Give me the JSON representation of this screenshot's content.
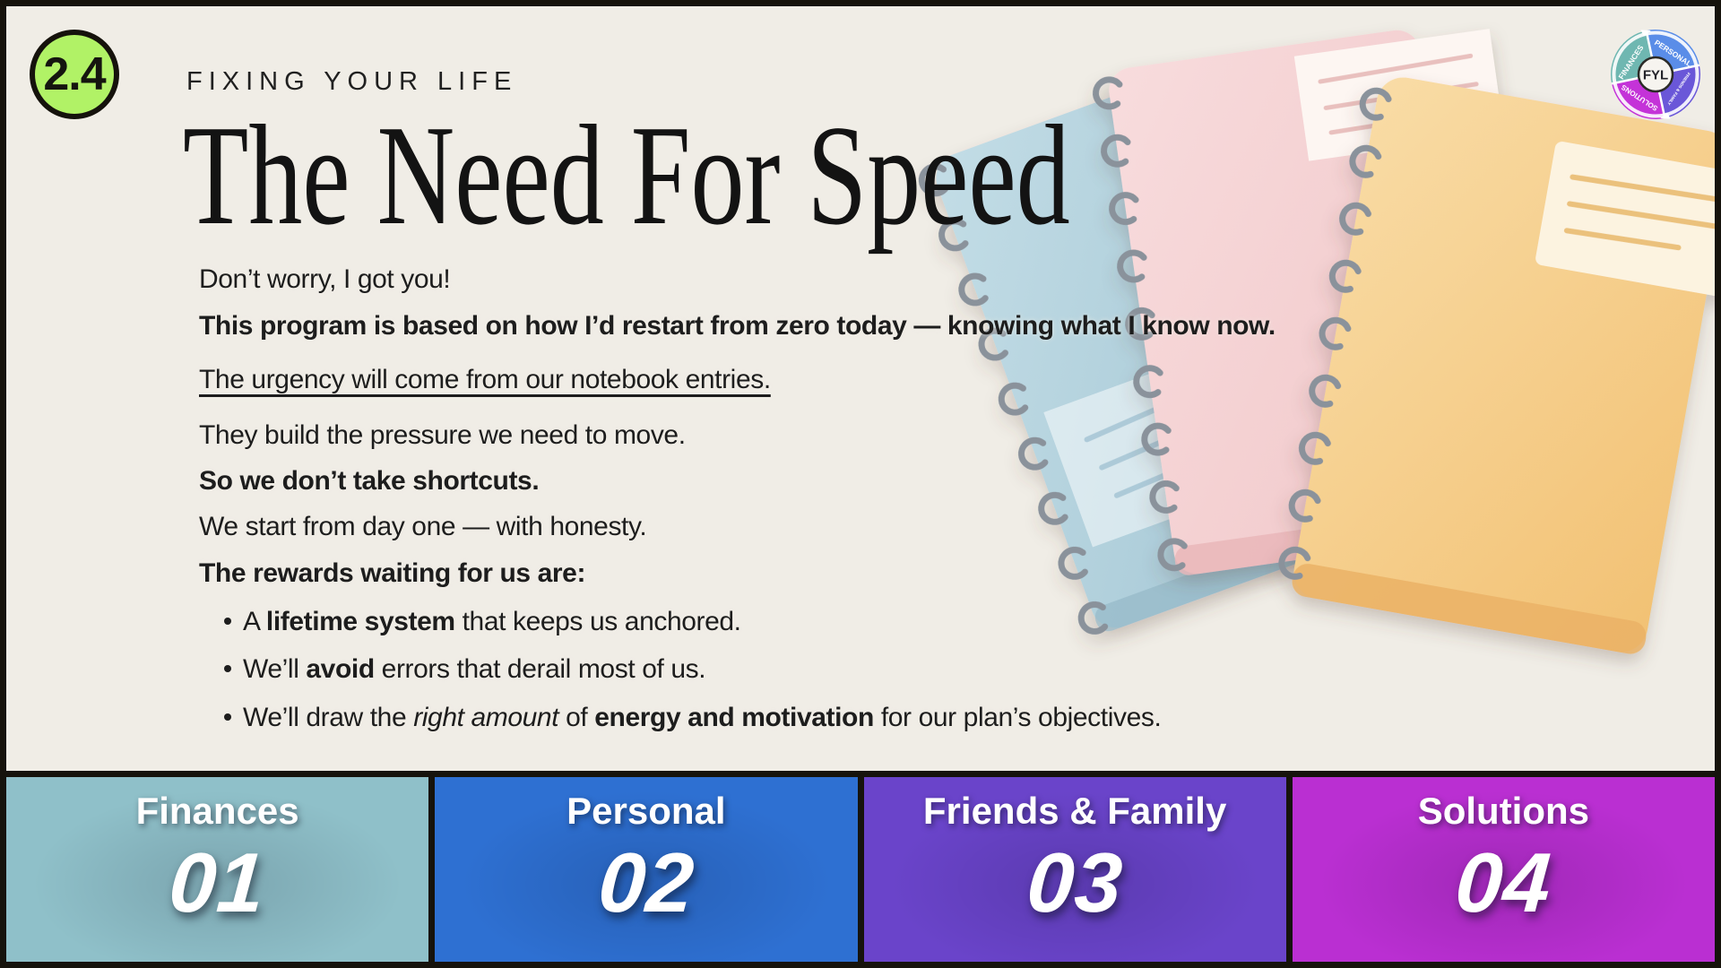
{
  "page": {
    "background": "#f0ede6",
    "border_color": "#16130c"
  },
  "header": {
    "lesson_badge": "2.4",
    "badge_color": "#b1f266",
    "eyebrow": "FIXING YOUR LIFE",
    "title": "The Need For Speed"
  },
  "body": {
    "lines": [
      {
        "segments": [
          {
            "t": "Don’t worry, I got you!"
          }
        ]
      },
      {
        "segments": [
          {
            "t": "This program is based on how I’d restart from zero today — knowing what I know now.",
            "b": true
          }
        ]
      },
      {
        "segments": [
          {
            "t": "The urgency will come from our notebook entries.",
            "u": true
          }
        ]
      },
      {
        "segments": [
          {
            "t": "They build the pressure we need to move."
          }
        ]
      },
      {
        "segments": [
          {
            "t": "So we don’t take shortcuts.",
            "b": true
          }
        ]
      },
      {
        "segments": [
          {
            "t": "We start from day one — with honesty."
          }
        ]
      },
      {
        "segments": [
          {
            "t": "The rewards waiting for us are:",
            "b": true
          }
        ]
      }
    ],
    "bullets": [
      {
        "segments": [
          {
            "t": "A "
          },
          {
            "t": "lifetime system",
            "b": true
          },
          {
            "t": " that keeps us anchored."
          }
        ]
      },
      {
        "segments": [
          {
            "t": "We’ll "
          },
          {
            "t": "avoid",
            "b": true
          },
          {
            "t": " errors that derail most of us."
          }
        ]
      },
      {
        "segments": [
          {
            "t": "We’ll draw the "
          },
          {
            "t": "right amount",
            "i": true
          },
          {
            "t": " of "
          },
          {
            "t": "energy and motivation",
            "b": true
          },
          {
            "t": " for our plan’s objectives."
          }
        ]
      }
    ]
  },
  "logo": {
    "center": "FYL",
    "quadrants": [
      {
        "label": "FINANCES",
        "color": "#6fb7b1"
      },
      {
        "label": "PERSONAL",
        "color": "#5a8de8"
      },
      {
        "label": "SOLUTIONS",
        "color": "#c433d8"
      },
      {
        "label": "FRIENDS & FAMILY",
        "color": "#6a57d8"
      }
    ]
  },
  "footer": {
    "items": [
      {
        "label": "Finances",
        "number": "01",
        "color": "#8fc0c9"
      },
      {
        "label": "Personal",
        "number": "02",
        "color": "#2e70d2"
      },
      {
        "label": "Friends & Family",
        "number": "03",
        "color": "#6a44ca"
      },
      {
        "label": "Solutions",
        "number": "04",
        "color": "#ba2fd2"
      }
    ]
  },
  "illustration": {
    "name": "three-disc-bound-notebooks",
    "colors": {
      "blue": "#b7d4df",
      "pink": "#f6d5d6",
      "orange": "#f7d194",
      "rings": "#8a929b"
    }
  }
}
